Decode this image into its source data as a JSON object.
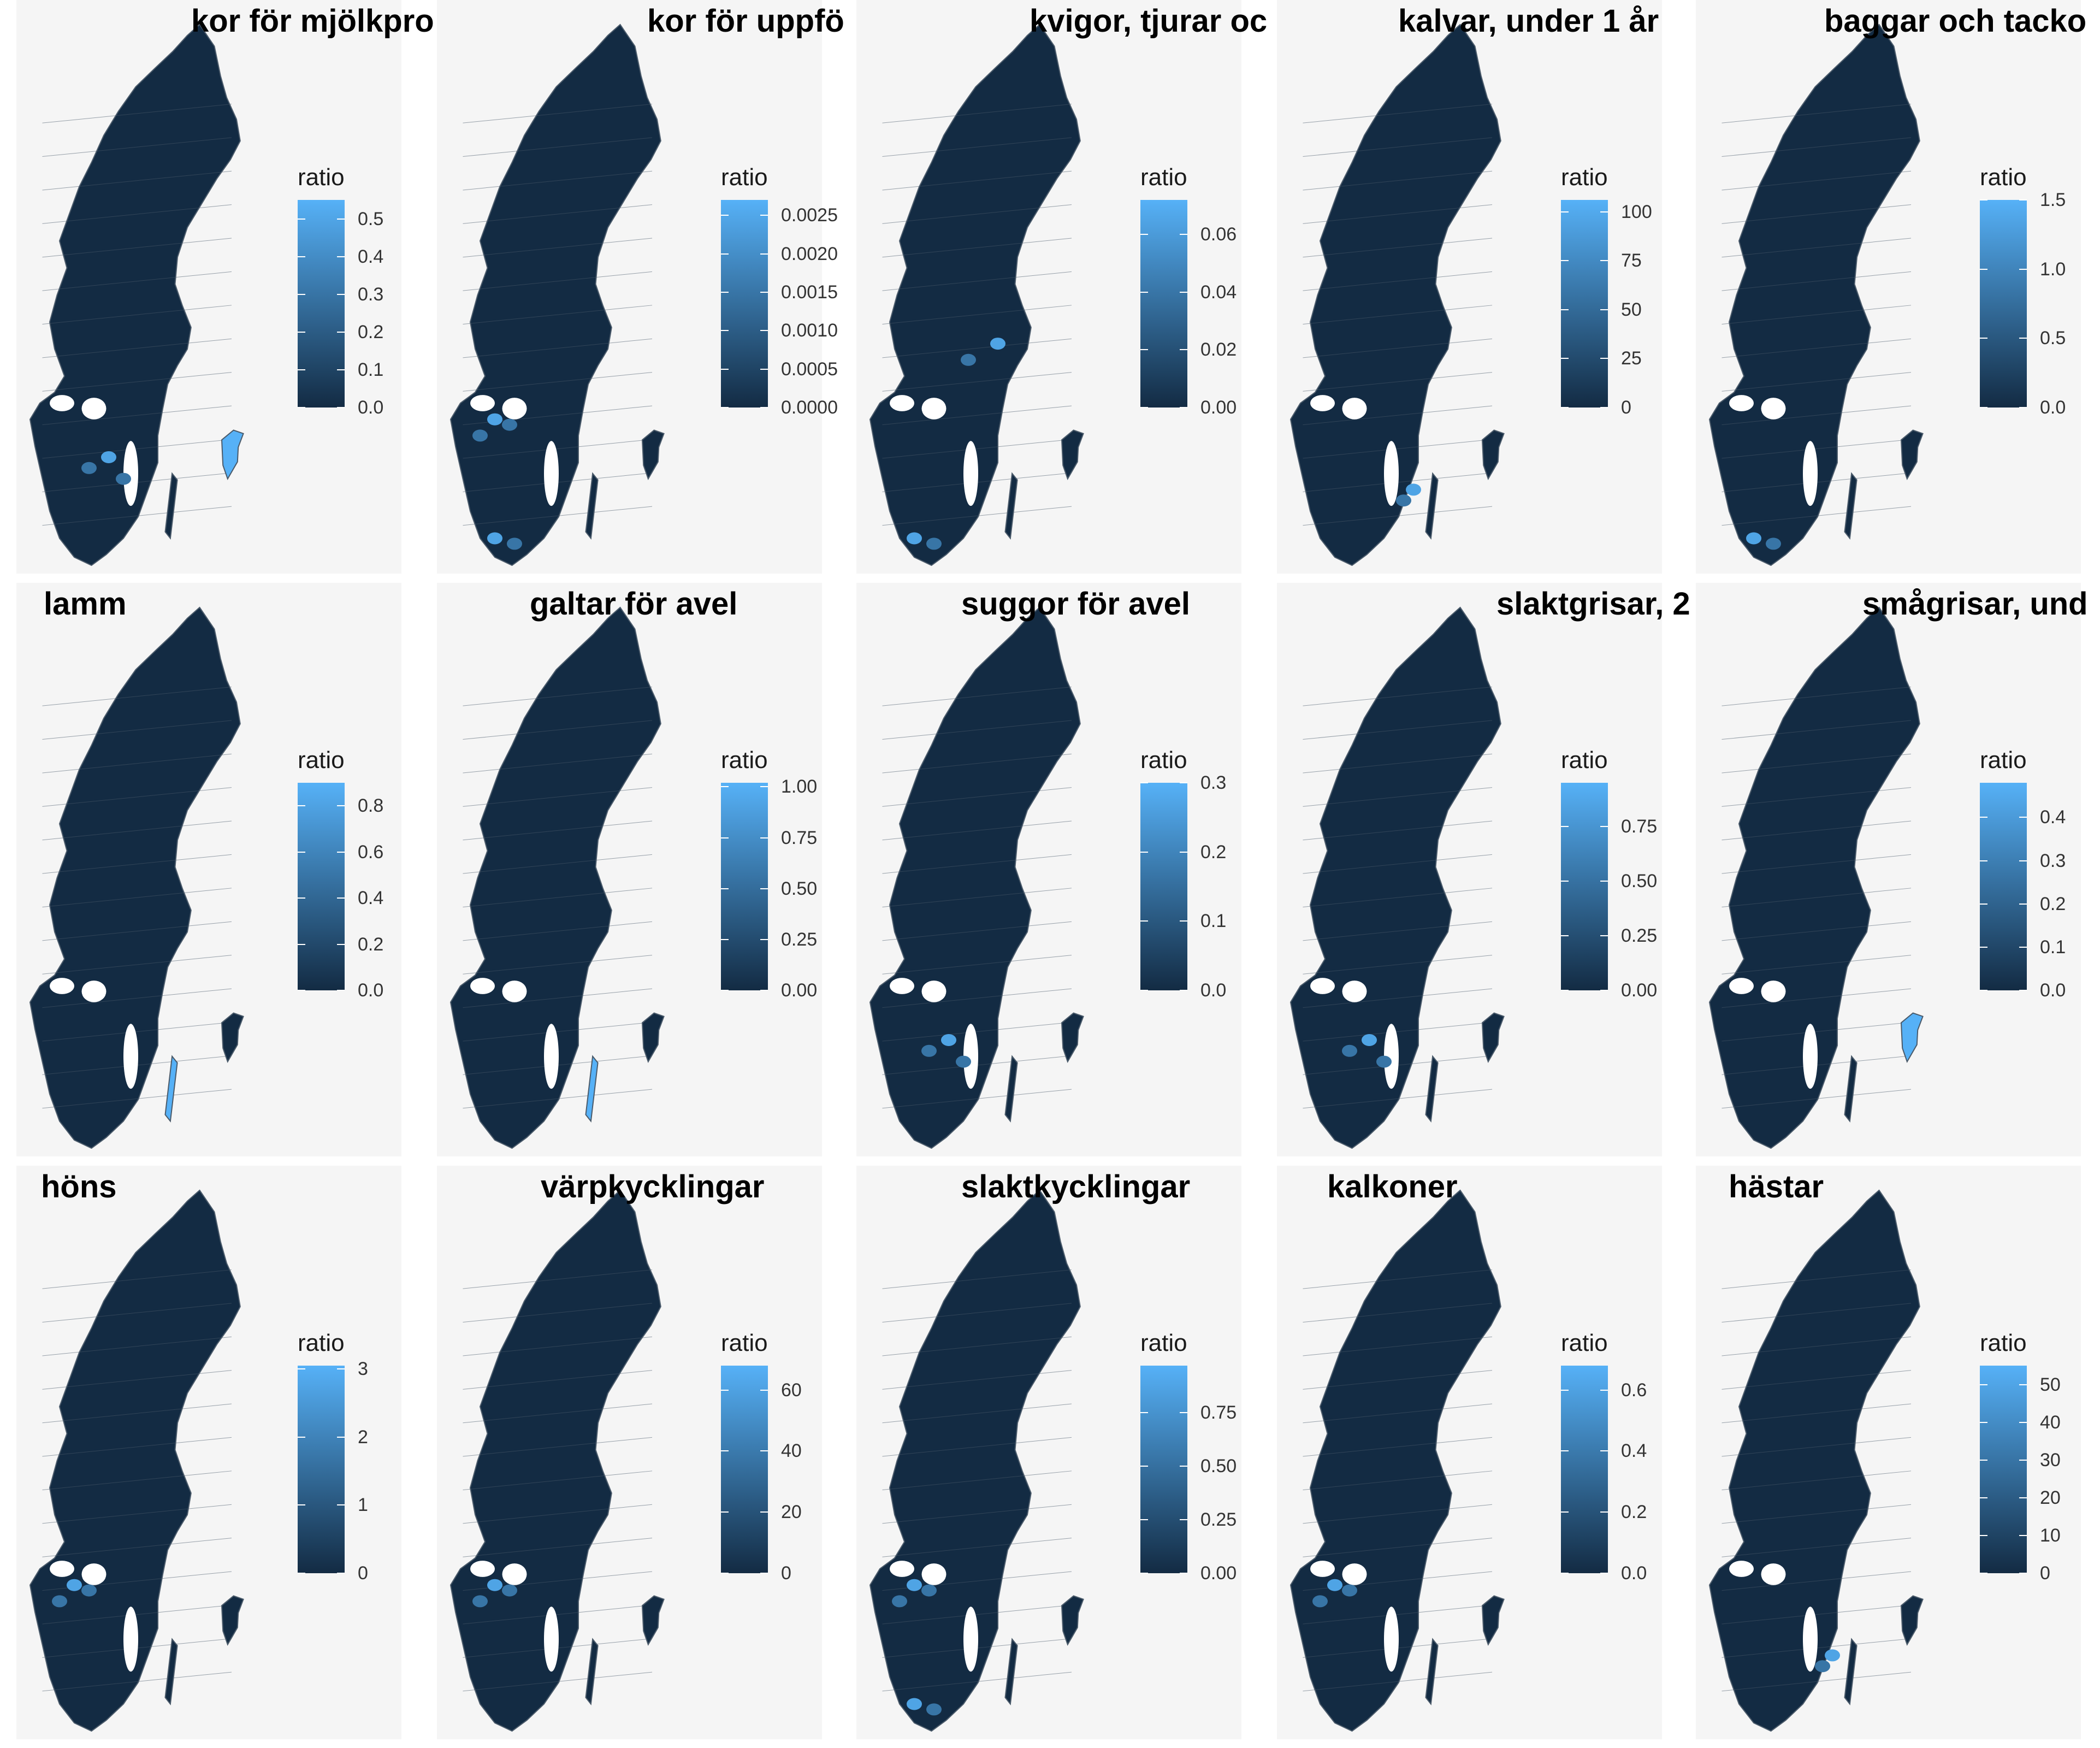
{
  "figure": {
    "panels": [
      {
        "title": "kor för mjölkpro",
        "legend_title": "ratio",
        "ticks": [
          "0.0",
          "0.1",
          "0.2",
          "0.3",
          "0.4",
          "0.5"
        ],
        "tick_values": [
          0,
          0.1,
          0.2,
          0.3,
          0.4,
          0.5
        ],
        "max": 0.55,
        "hotspots": [
          "gotland",
          "central-south"
        ]
      },
      {
        "title": "kor för uppfö",
        "legend_title": "ratio",
        "ticks": [
          "0.0000",
          "0.0005",
          "0.0010",
          "0.0015",
          "0.0020",
          "0.0025"
        ],
        "tick_values": [
          0,
          0.0005,
          0.001,
          0.0015,
          0.002,
          0.0025
        ],
        "max": 0.0027,
        "hotspots": [
          "west",
          "skane"
        ]
      },
      {
        "title": "kvigor, tjurar oc",
        "legend_title": "ratio",
        "ticks": [
          "0.00",
          "0.02",
          "0.04",
          "0.06"
        ],
        "tick_values": [
          0,
          0.02,
          0.04,
          0.06
        ],
        "max": 0.072,
        "hotspots": [
          "central",
          "skane"
        ]
      },
      {
        "title": "kalvar, under 1 år",
        "legend_title": "ratio",
        "ticks": [
          "0",
          "25",
          "50",
          "75",
          "100"
        ],
        "tick_values": [
          0,
          25,
          50,
          75,
          100
        ],
        "max": 106,
        "hotspots": [
          "southeast"
        ]
      },
      {
        "title": "baggar och tacko",
        "legend_title": "ratio",
        "ticks": [
          "0.0",
          "0.5",
          "1.0",
          "1.5"
        ],
        "tick_values": [
          0,
          0.5,
          1.0,
          1.5
        ],
        "max": 1.5,
        "hotspots": [
          "skane"
        ]
      },
      {
        "title": "lamm",
        "legend_title": "ratio",
        "ticks": [
          "0.0",
          "0.2",
          "0.4",
          "0.6",
          "0.8"
        ],
        "tick_values": [
          0,
          0.2,
          0.4,
          0.6,
          0.8
        ],
        "max": 0.9,
        "hotspots": [
          "oland"
        ]
      },
      {
        "title": "galtar för avel",
        "legend_title": "ratio",
        "ticks": [
          "0.00",
          "0.25",
          "0.50",
          "0.75",
          "1.00"
        ],
        "tick_values": [
          0,
          0.25,
          0.5,
          0.75,
          1.0
        ],
        "max": 1.02,
        "hotspots": [
          "oland"
        ]
      },
      {
        "title": "suggor för avel",
        "legend_title": "ratio",
        "ticks": [
          "0.0",
          "0.1",
          "0.2",
          "0.3"
        ],
        "tick_values": [
          0,
          0.1,
          0.2,
          0.3
        ],
        "max": 0.3,
        "hotspots": [
          "central-south"
        ]
      },
      {
        "title": "slaktgrisar, 2",
        "legend_title": "ratio",
        "ticks": [
          "0.00",
          "0.25",
          "0.50",
          "0.75"
        ],
        "tick_values": [
          0,
          0.25,
          0.5,
          0.75
        ],
        "max": 0.95,
        "hotspots": [
          "central-south"
        ]
      },
      {
        "title": "smågrisar, und",
        "legend_title": "ratio",
        "ticks": [
          "0.0",
          "0.1",
          "0.2",
          "0.3",
          "0.4"
        ],
        "tick_values": [
          0,
          0.1,
          0.2,
          0.3,
          0.4
        ],
        "max": 0.48,
        "hotspots": [
          "gotland"
        ]
      },
      {
        "title": "höns",
        "legend_title": "ratio",
        "ticks": [
          "0",
          "1",
          "2",
          "3"
        ],
        "tick_values": [
          0,
          1,
          2,
          3
        ],
        "max": 3.05,
        "hotspots": [
          "west"
        ]
      },
      {
        "title": "värpkycklingar",
        "legend_title": "ratio",
        "ticks": [
          "0",
          "20",
          "40",
          "60"
        ],
        "tick_values": [
          0,
          20,
          40,
          60
        ],
        "max": 68,
        "hotspots": [
          "west"
        ]
      },
      {
        "title": "slaktkycklingar",
        "legend_title": "ratio",
        "ticks": [
          "0.00",
          "0.25",
          "0.50",
          "0.75"
        ],
        "tick_values": [
          0,
          0.25,
          0.5,
          0.75
        ],
        "max": 0.97,
        "hotspots": [
          "west",
          "skane"
        ]
      },
      {
        "title": "kalkoner",
        "legend_title": "ratio",
        "ticks": [
          "0.0",
          "0.2",
          "0.4",
          "0.6"
        ],
        "tick_values": [
          0,
          0.2,
          0.4,
          0.6
        ],
        "max": 0.68,
        "hotspots": [
          "west"
        ]
      },
      {
        "title": "hästar",
        "legend_title": "ratio",
        "ticks": [
          "0",
          "10",
          "20",
          "30",
          "40",
          "50"
        ],
        "tick_values": [
          0,
          10,
          20,
          30,
          40,
          50
        ],
        "max": 55,
        "hotspots": [
          "southeast"
        ]
      }
    ]
  },
  "colors": {
    "low": "#132b43",
    "high": "#56b1f7",
    "panel_background": "#f5f5f5",
    "border": "#4a5a6a"
  }
}
